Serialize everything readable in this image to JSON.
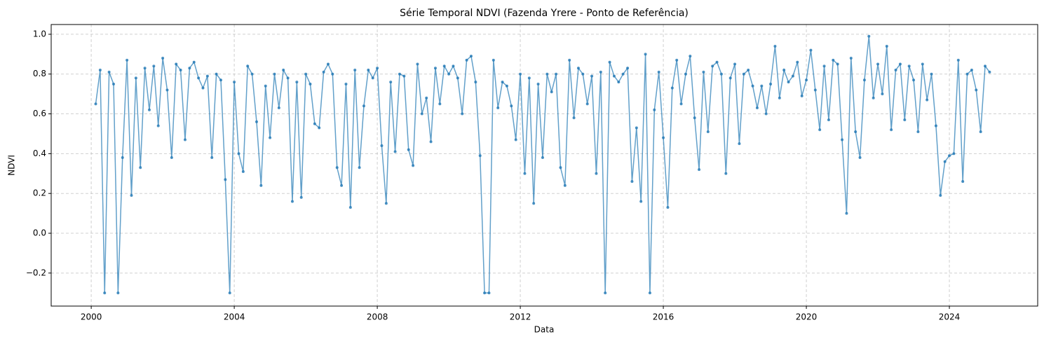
{
  "chart_data": {
    "type": "line",
    "title": "Série Temporal NDVI (Fazenda Yrere - Ponto de Referência)",
    "x_label": "Data",
    "y_label": "NDVI",
    "color": "#1f77b4",
    "grid": true,
    "markers": true,
    "xlim": [
      1998.88,
      2026.47
    ],
    "xticks": [
      2000,
      2004,
      2008,
      2012,
      2016,
      2020,
      2024
    ],
    "ylim": [
      -0.366,
      1.049
    ],
    "yticks": [
      {
        "value": -0.2,
        "label": "−0.2"
      },
      {
        "value": 0,
        "label": "0.0"
      },
      0.2,
      0.4,
      0.6,
      0.8,
      {
        "value": 1,
        "label": "1.0"
      }
    ],
    "x": [
      2000.125,
      2000.25,
      2000.375,
      2000.5,
      2000.625,
      2000.75,
      2000.875,
      2001,
      2001.125,
      2001.25,
      2001.375,
      2001.5,
      2001.625,
      2001.75,
      2001.875,
      2002,
      2002.125,
      2002.25,
      2002.375,
      2002.5,
      2002.625,
      2002.75,
      2002.875,
      2003,
      2003.125,
      2003.25,
      2003.375,
      2003.5,
      2003.625,
      2003.75,
      2003.875,
      2004,
      2004.125,
      2004.25,
      2004.375,
      2004.5,
      2004.625,
      2004.75,
      2004.875,
      2005,
      2005.125,
      2005.25,
      2005.375,
      2005.5,
      2005.625,
      2005.75,
      2005.875,
      2006,
      2006.125,
      2006.25,
      2006.375,
      2006.5,
      2006.625,
      2006.75,
      2006.875,
      2007,
      2007.125,
      2007.25,
      2007.375,
      2007.5,
      2007.625,
      2007.75,
      2007.875,
      2008,
      2008.125,
      2008.25,
      2008.375,
      2008.5,
      2008.625,
      2008.75,
      2008.875,
      2009,
      2009.125,
      2009.25,
      2009.375,
      2009.5,
      2009.625,
      2009.75,
      2009.875,
      2010,
      2010.125,
      2010.25,
      2010.375,
      2010.5,
      2010.625,
      2010.75,
      2010.875,
      2011,
      2011.125,
      2011.25,
      2011.375,
      2011.5,
      2011.625,
      2011.75,
      2011.875,
      2012,
      2012.125,
      2012.25,
      2012.375,
      2012.5,
      2012.625,
      2012.75,
      2012.875,
      2013,
      2013.125,
      2013.25,
      2013.375,
      2013.5,
      2013.625,
      2013.75,
      2013.875,
      2014,
      2014.125,
      2014.25,
      2014.375,
      2014.5,
      2014.625,
      2014.75,
      2014.875,
      2015,
      2015.125,
      2015.25,
      2015.375,
      2015.5,
      2015.625,
      2015.75,
      2015.875,
      2016,
      2016.125,
      2016.25,
      2016.375,
      2016.5,
      2016.625,
      2016.75,
      2016.875,
      2017,
      2017.125,
      2017.25,
      2017.375,
      2017.5,
      2017.625,
      2017.75,
      2017.875,
      2018,
      2018.125,
      2018.25,
      2018.375,
      2018.5,
      2018.625,
      2018.75,
      2018.875,
      2019,
      2019.125,
      2019.25,
      2019.375,
      2019.5,
      2019.625,
      2019.75,
      2019.875,
      2020,
      2020.125,
      2020.25,
      2020.375,
      2020.5,
      2020.625,
      2020.75,
      2020.875,
      2021,
      2021.125,
      2021.25,
      2021.375,
      2021.5,
      2021.625,
      2021.75,
      2021.875,
      2022,
      2022.125,
      2022.25,
      2022.375,
      2022.5,
      2022.625,
      2022.75,
      2022.875,
      2023,
      2023.125,
      2023.25,
      2023.375,
      2023.5,
      2023.625,
      2023.75,
      2023.875,
      2024,
      2024.125,
      2024.25,
      2024.375,
      2024.5,
      2024.625,
      2024.75,
      2024.875,
      2025,
      2025.125
    ],
    "values": [
      0.65,
      0.82,
      -0.3,
      0.81,
      0.75,
      -0.3,
      0.38,
      0.87,
      0.19,
      0.78,
      0.33,
      0.83,
      0.62,
      0.84,
      0.54,
      0.88,
      0.72,
      0.38,
      0.85,
      0.82,
      0.47,
      0.83,
      0.86,
      0.78,
      0.73,
      0.79,
      0.38,
      0.8,
      0.77,
      0.27,
      -0.3,
      0.76,
      0.4,
      0.31,
      0.84,
      0.8,
      0.56,
      0.24,
      0.74,
      0.48,
      0.8,
      0.63,
      0.82,
      0.78,
      0.16,
      0.76,
      0.18,
      0.8,
      0.75,
      0.55,
      0.53,
      0.81,
      0.85,
      0.8,
      0.33,
      0.24,
      0.75,
      0.13,
      0.82,
      0.33,
      0.64,
      0.82,
      0.78,
      0.83,
      0.44,
      0.15,
      0.76,
      0.41,
      0.8,
      0.79,
      0.42,
      0.34,
      0.85,
      0.6,
      0.68,
      0.46,
      0.83,
      0.65,
      0.84,
      0.8,
      0.84,
      0.78,
      0.6,
      0.87,
      0.89,
      0.76,
      0.39,
      -0.3,
      -0.3,
      0.87,
      0.63,
      0.76,
      0.74,
      0.64,
      0.47,
      0.8,
      0.3,
      0.78,
      0.15,
      0.75,
      0.38,
      0.8,
      0.71,
      0.8,
      0.33,
      0.24,
      0.87,
      0.58,
      0.83,
      0.8,
      0.65,
      0.79,
      0.3,
      0.81,
      -0.3,
      0.86,
      0.79,
      0.76,
      0.8,
      0.83,
      0.26,
      0.53,
      0.16,
      0.9,
      -0.3,
      0.62,
      0.81,
      0.48,
      0.13,
      0.73,
      0.87,
      0.65,
      0.8,
      0.89,
      0.58,
      0.32,
      0.81,
      0.51,
      0.84,
      0.86,
      0.8,
      0.3,
      0.78,
      0.85,
      0.45,
      0.8,
      0.82,
      0.74,
      0.63,
      0.74,
      0.6,
      0.75,
      0.94,
      0.68,
      0.82,
      0.76,
      0.79,
      0.86,
      0.69,
      0.77,
      0.92,
      0.72,
      0.52,
      0.84,
      0.57,
      0.87,
      0.85,
      0.47,
      0.1,
      0.88,
      0.51,
      0.38,
      0.77,
      0.99,
      0.68,
      0.85,
      0.7,
      0.94,
      0.52,
      0.82,
      0.85,
      0.57,
      0.84,
      0.77,
      0.51,
      0.85,
      0.67,
      0.8,
      0.54,
      0.19,
      0.36,
      0.39,
      0.4,
      0.87,
      0.26,
      0.8,
      0.82,
      0.72,
      0.51,
      0.84,
      0.81
    ]
  }
}
